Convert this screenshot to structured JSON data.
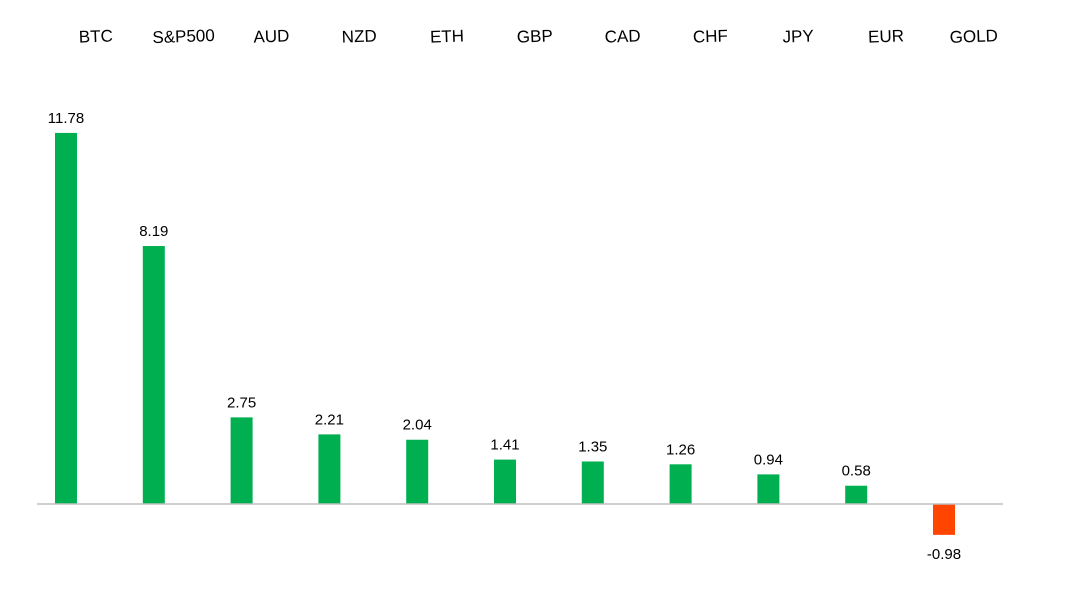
{
  "chart_data": {
    "type": "bar",
    "categories": [
      "BTC",
      "S&P500",
      "AUD",
      "NZD",
      "ETH",
      "GBP",
      "CAD",
      "CHF",
      "JPY",
      "EUR",
      "GOLD"
    ],
    "values": [
      11.78,
      8.19,
      2.75,
      2.21,
      2.04,
      1.41,
      1.35,
      1.26,
      0.94,
      0.58,
      -0.98
    ],
    "data_labels": [
      "11.78",
      "8.19",
      "2.75",
      "2.21",
      "2.04",
      "1.41",
      "1.35",
      "1.26",
      "0.94",
      "0.58",
      "-0.98"
    ],
    "category_axis_position": "top",
    "grid": false,
    "legend": "none",
    "colors": {
      "positive": "#00b050",
      "negative": "#ff4500",
      "axis": "#bfbfbf"
    }
  }
}
